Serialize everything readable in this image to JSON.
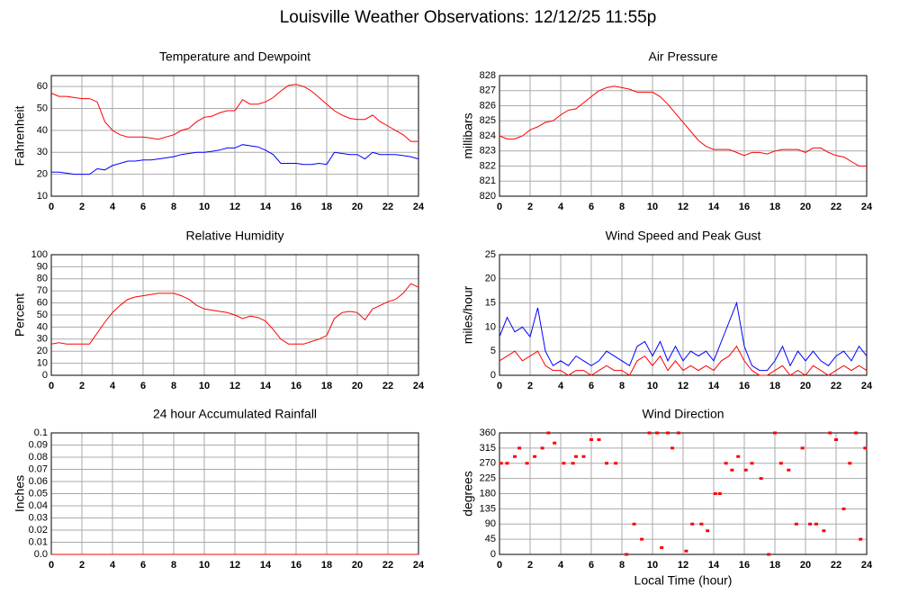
{
  "title": "Louisville Weather Observations: 12/12/25 11:55p",
  "chart_data": [
    {
      "type": "line",
      "title": "Temperature and Dewpoint",
      "ylabel": "Fahrenheit",
      "grid": true,
      "xlim": [
        0,
        24
      ],
      "xticks": [
        0,
        2,
        4,
        6,
        8,
        10,
        12,
        14,
        16,
        18,
        20,
        22,
        24
      ],
      "ylim": [
        10,
        65
      ],
      "yticks": [
        10,
        20,
        30,
        40,
        50,
        60
      ],
      "x": [
        0,
        0.5,
        1,
        1.5,
        2,
        2.5,
        3,
        3.5,
        4,
        4.5,
        5,
        5.5,
        6,
        6.5,
        7,
        7.5,
        8,
        8.5,
        9,
        9.5,
        10,
        10.5,
        11,
        11.5,
        12,
        12.5,
        13,
        13.5,
        14,
        14.5,
        15,
        15.5,
        16,
        16.5,
        17,
        17.5,
        18,
        18.5,
        19,
        19.5,
        20,
        20.5,
        21,
        21.5,
        22,
        22.5,
        23,
        23.5,
        24
      ],
      "series": [
        {
          "color": "#ff0000",
          "values": [
            57,
            55.5,
            55.5,
            55,
            54.5,
            54.5,
            53,
            44,
            40,
            38,
            37,
            37,
            37,
            36.5,
            36,
            37,
            38,
            40,
            41,
            44,
            46,
            46.5,
            48,
            49,
            49,
            54,
            52,
            52,
            53,
            55,
            58,
            60.5,
            61,
            60,
            58,
            55,
            52,
            49,
            47,
            45.5,
            45,
            45,
            47,
            44,
            42,
            40,
            38,
            35,
            35
          ]
        },
        {
          "color": "#0000ff",
          "values": [
            21,
            21,
            20.5,
            20,
            20,
            20,
            22.5,
            22,
            24,
            25,
            26,
            26,
            26.5,
            26.5,
            27,
            27.5,
            28,
            29,
            29.5,
            30,
            30,
            30.5,
            31,
            32,
            32,
            33.5,
            33,
            32.5,
            31,
            29,
            25,
            25,
            25,
            24.5,
            24.5,
            25,
            24.5,
            30,
            29.5,
            29,
            29,
            27,
            30,
            29,
            29,
            29,
            28.5,
            28,
            27
          ]
        }
      ]
    },
    {
      "type": "line",
      "title": "Air Pressure",
      "ylabel": "millibars",
      "grid": true,
      "xlim": [
        0,
        24
      ],
      "xticks": [
        0,
        2,
        4,
        6,
        8,
        10,
        12,
        14,
        16,
        18,
        20,
        22,
        24
      ],
      "ylim": [
        820,
        828
      ],
      "yticks": [
        820,
        821,
        822,
        823,
        824,
        825,
        826,
        827,
        828
      ],
      "x": [
        0,
        0.5,
        1,
        1.5,
        2,
        2.5,
        3,
        3.5,
        4,
        4.5,
        5,
        5.5,
        6,
        6.5,
        7,
        7.5,
        8,
        8.5,
        9,
        9.5,
        10,
        10.5,
        11,
        11.5,
        12,
        12.5,
        13,
        13.5,
        14,
        14.5,
        15,
        15.5,
        16,
        16.5,
        17,
        17.5,
        18,
        18.5,
        19,
        19.5,
        20,
        20.5,
        21,
        21.5,
        22,
        22.5,
        23,
        23.5,
        24
      ],
      "series": [
        {
          "color": "#ff0000",
          "values": [
            824,
            823.8,
            823.8,
            824,
            824.4,
            824.6,
            824.9,
            825,
            825.4,
            825.7,
            825.8,
            826.2,
            826.6,
            827,
            827.2,
            827.3,
            827.2,
            827.1,
            826.9,
            826.9,
            826.9,
            826.6,
            826.1,
            825.5,
            824.9,
            824.3,
            823.7,
            823.3,
            823.1,
            823.1,
            823.1,
            822.9,
            822.7,
            822.9,
            822.9,
            822.8,
            823,
            823.1,
            823.1,
            823.1,
            822.9,
            823.2,
            823.2,
            822.9,
            822.7,
            822.6,
            822.3,
            822,
            822
          ]
        }
      ]
    },
    {
      "type": "line",
      "title": "Relative Humidity",
      "ylabel": "Percent",
      "grid": true,
      "xlim": [
        0,
        24
      ],
      "xticks": [
        0,
        2,
        4,
        6,
        8,
        10,
        12,
        14,
        16,
        18,
        20,
        22,
        24
      ],
      "ylim": [
        0,
        100
      ],
      "yticks": [
        0,
        10,
        20,
        30,
        40,
        50,
        60,
        70,
        80,
        90,
        100
      ],
      "x": [
        0,
        0.5,
        1,
        1.5,
        2,
        2.5,
        3,
        3.5,
        4,
        4.5,
        5,
        5.5,
        6,
        6.5,
        7,
        7.5,
        8,
        8.5,
        9,
        9.5,
        10,
        10.5,
        11,
        11.5,
        12,
        12.5,
        13,
        13.5,
        14,
        14.5,
        15,
        15.5,
        16,
        16.5,
        17,
        17.5,
        18,
        18.5,
        19,
        19.5,
        20,
        20.5,
        21,
        21.5,
        22,
        22.5,
        23,
        23.5,
        24
      ],
      "series": [
        {
          "color": "#ff0000",
          "values": [
            26,
            27,
            26,
            26,
            26,
            26,
            35,
            44,
            52,
            58,
            63,
            65,
            66,
            67,
            68,
            68,
            68,
            66,
            63,
            58,
            55,
            54,
            53,
            52,
            50,
            47,
            49,
            48,
            45,
            38,
            30,
            26,
            26,
            26,
            28,
            30,
            33,
            47,
            52,
            53,
            52,
            46,
            55,
            58,
            61,
            63,
            68,
            76,
            73
          ]
        }
      ]
    },
    {
      "type": "line",
      "title": "Wind Speed and Peak Gust",
      "ylabel": "miles/hour",
      "grid": true,
      "xlim": [
        0,
        24
      ],
      "xticks": [
        0,
        2,
        4,
        6,
        8,
        10,
        12,
        14,
        16,
        18,
        20,
        22,
        24
      ],
      "ylim": [
        0,
        25
      ],
      "yticks": [
        0,
        5,
        10,
        15,
        20,
        25
      ],
      "x": [
        0,
        0.5,
        1,
        1.5,
        2,
        2.5,
        3,
        3.5,
        4,
        4.5,
        5,
        5.5,
        6,
        6.5,
        7,
        7.5,
        8,
        8.5,
        9,
        9.5,
        10,
        10.5,
        11,
        11.5,
        12,
        12.5,
        13,
        13.5,
        14,
        14.5,
        15,
        15.5,
        16,
        16.5,
        17,
        17.5,
        18,
        18.5,
        19,
        19.5,
        20,
        20.5,
        21,
        21.5,
        22,
        22.5,
        23,
        23.5,
        24
      ],
      "series": [
        {
          "color": "#0000ff",
          "values": [
            8,
            12,
            9,
            10,
            8,
            14,
            5,
            2,
            3,
            2,
            4,
            3,
            2,
            3,
            5,
            4,
            3,
            2,
            6,
            7,
            4,
            7,
            3,
            6,
            3,
            5,
            4,
            5,
            3,
            7,
            11,
            15,
            6,
            2,
            1,
            1,
            3,
            6,
            2,
            5,
            3,
            5,
            3,
            2,
            4,
            5,
            3,
            6,
            4
          ]
        },
        {
          "color": "#ff0000",
          "values": [
            3,
            4,
            5,
            3,
            4,
            5,
            2,
            1,
            1,
            0,
            1,
            1,
            0,
            1,
            2,
            1,
            1,
            0,
            3,
            4,
            2,
            4,
            1,
            3,
            1,
            2,
            1,
            2,
            1,
            3,
            4,
            6,
            3,
            1,
            0,
            0,
            1,
            2,
            0,
            1,
            0,
            2,
            1,
            0,
            1,
            2,
            1,
            2,
            1
          ]
        }
      ]
    },
    {
      "type": "line",
      "title": "24 hour Accumulated Rainfall",
      "ylabel": "Inches",
      "grid": true,
      "xlim": [
        0,
        24
      ],
      "xticks": [
        0,
        2,
        4,
        6,
        8,
        10,
        12,
        14,
        16,
        18,
        20,
        22,
        24
      ],
      "ylim": [
        0,
        0.1
      ],
      "yticks": [
        {
          "value": 0,
          "label": "0.0"
        },
        0.01,
        0.02,
        0.03,
        0.04,
        0.05,
        0.06,
        0.07,
        0.08,
        0.09,
        0.1
      ],
      "x": [
        0,
        24
      ],
      "series": [
        {
          "color": "#ff0000",
          "values": [
            0,
            0
          ]
        }
      ]
    },
    {
      "type": "scatter",
      "title": "Wind Direction",
      "ylabel": "degrees",
      "xlabel": "Local Time (hour)",
      "grid": true,
      "xlim": [
        0,
        24
      ],
      "xticks": [
        0,
        2,
        4,
        6,
        8,
        10,
        12,
        14,
        16,
        18,
        20,
        22,
        24
      ],
      "ylim": [
        0,
        360
      ],
      "yticks": [
        0,
        45,
        90,
        135,
        180,
        225,
        270,
        315,
        360
      ],
      "x": [
        0.1,
        0.5,
        1,
        1.3,
        1.8,
        2.3,
        2.8,
        3.2,
        3.6,
        4.2,
        4.8,
        5,
        5.5,
        6,
        6.5,
        7,
        7.6,
        8.3,
        8.8,
        9.3,
        9.8,
        10.3,
        10.6,
        11,
        11.3,
        11.7,
        12.2,
        12.6,
        13.2,
        13.6,
        14.1,
        14.4,
        14.8,
        15.2,
        15.6,
        16.1,
        16.5,
        17.1,
        17.6,
        18,
        18.4,
        18.9,
        19.4,
        19.8,
        20.3,
        20.7,
        21.2,
        21.6,
        22,
        22.5,
        22.9,
        23.3,
        23.6,
        23.9
      ],
      "series": [
        {
          "color": "#ff0000",
          "values": [
            270,
            270,
            290,
            315,
            270,
            290,
            315,
            360,
            330,
            270,
            270,
            290,
            290,
            340,
            340,
            270,
            270,
            0,
            90,
            45,
            360,
            360,
            20,
            360,
            315,
            360,
            10,
            90,
            90,
            70,
            180,
            180,
            270,
            250,
            290,
            250,
            270,
            225,
            0,
            360,
            270,
            250,
            90,
            315,
            90,
            90,
            70,
            360,
            340,
            135,
            270,
            360,
            45,
            315
          ]
        }
      ]
    }
  ]
}
